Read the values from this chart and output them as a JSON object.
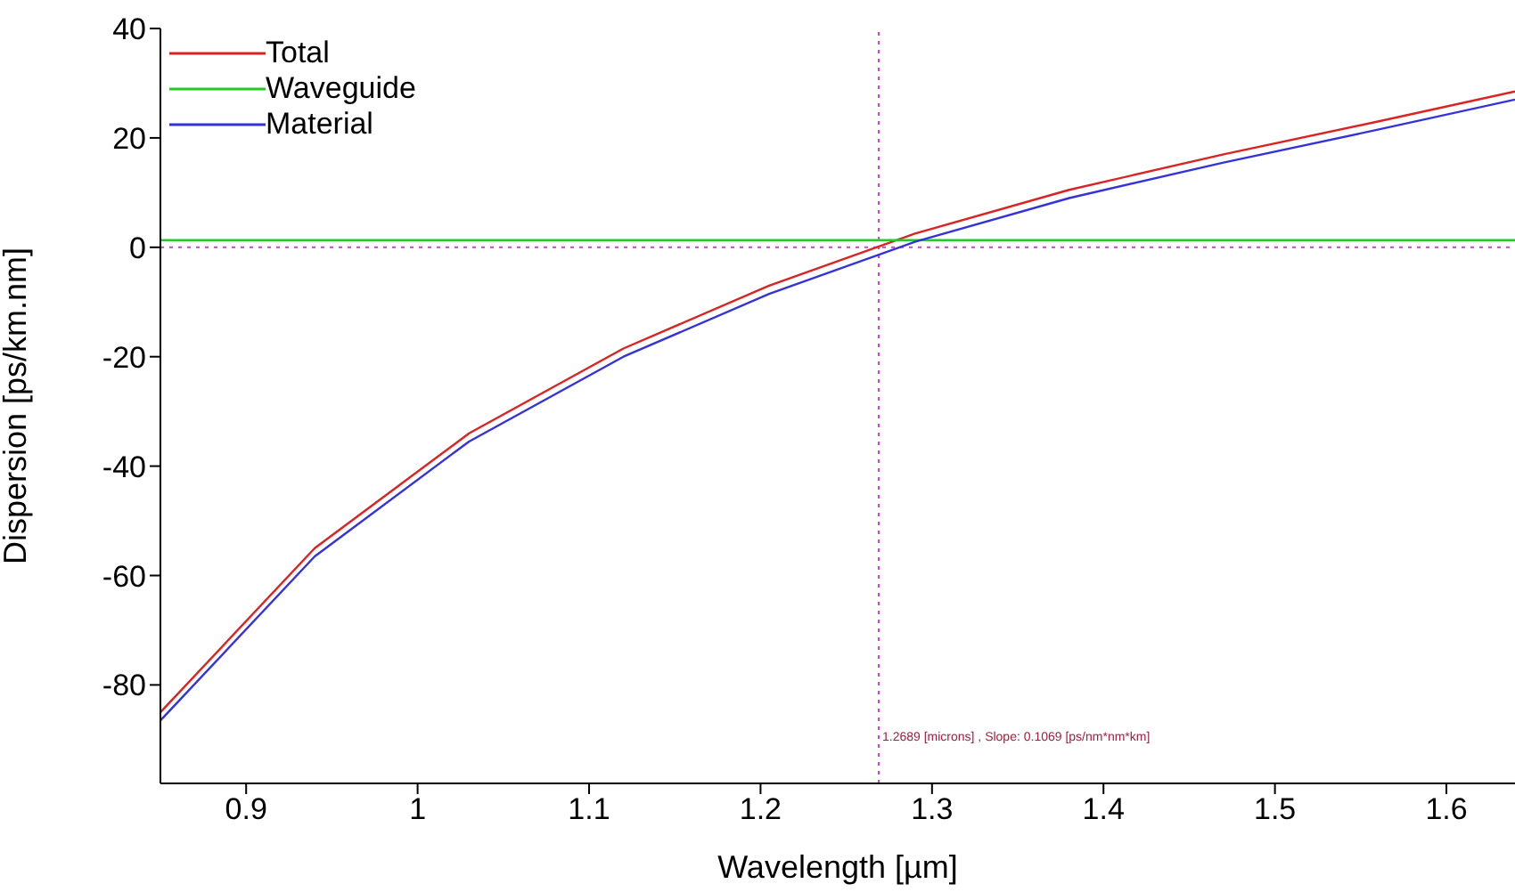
{
  "chart_data": {
    "type": "line",
    "xlabel": "Wavelength [µm]",
    "ylabel": "Dispersion [ps/km.nm]",
    "x": [
      0.85,
      0.94,
      1.03,
      1.12,
      1.205,
      1.29,
      1.38,
      1.47,
      1.56,
      1.64
    ],
    "series": [
      {
        "name": "Total",
        "color": "#dd2222",
        "values": [
          -85,
          -55,
          -34,
          -18.5,
          -7,
          2.5,
          10.5,
          17,
          23,
          28.5
        ]
      },
      {
        "name": "Waveguide",
        "color": "#22cc22",
        "x": [
          0.85,
          1.64
        ],
        "values": [
          1.3,
          1.3
        ]
      },
      {
        "name": "Material",
        "color": "#3333dd",
        "values": [
          -86.5,
          -56.5,
          -35.5,
          -20,
          -8.5,
          1,
          9,
          15.5,
          21.5,
          27
        ]
      }
    ],
    "xlim": [
      0.85,
      1.64
    ],
    "ylim": [
      -98,
      40
    ],
    "xticks": [
      0.9,
      1,
      1.1,
      1.2,
      1.3,
      1.4,
      1.5,
      1.6
    ],
    "yticks": [
      -80,
      -60,
      -40,
      -20,
      0,
      20,
      40
    ],
    "ref_lines": [
      {
        "axis": "y",
        "value": 0,
        "color": "#cc44cc",
        "line_style": "dotted"
      },
      {
        "axis": "x",
        "value": 1.2689,
        "color": "#cc44cc",
        "line_style": "dotted",
        "label": "1.2689 [microns] , Slope: 0.1069 [ps/nm*nm*km]"
      }
    ],
    "grid": false,
    "legend": "top left",
    "marker": "none",
    "line_style": "solid"
  }
}
